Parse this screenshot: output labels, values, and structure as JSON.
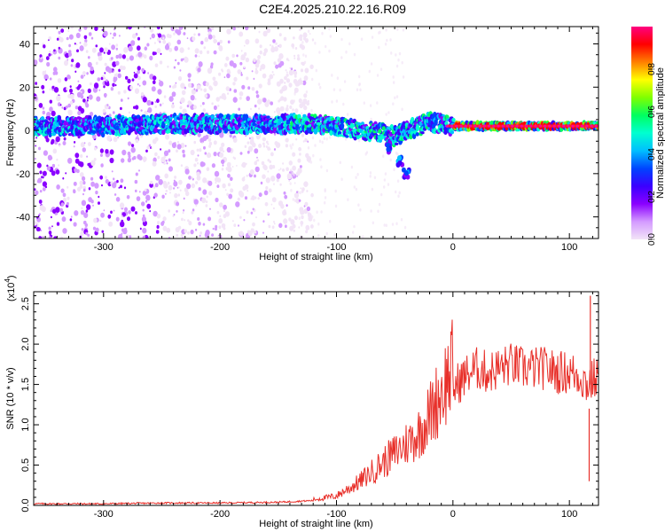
{
  "title": "C2E4.2025.210.22.16.R09",
  "chart_data": [
    {
      "type": "heatmap",
      "xlabel": "Height of straight line (km)",
      "ylabel": "Frequency (Hz)",
      "xlim": [
        -360,
        125
      ],
      "ylim": [
        -50,
        48
      ],
      "xticks": [
        -300,
        -200,
        -100,
        0,
        100
      ],
      "yticks": [
        -40,
        -20,
        0,
        20,
        40
      ],
      "xtick_labels": [
        "-300",
        "-200",
        "-100",
        "0",
        "100"
      ],
      "ytick_labels": [
        "-40",
        "-20",
        "0",
        "20",
        "40"
      ],
      "colorbar": {
        "label": "Normalized spectral amplitude",
        "range": [
          0,
          1
        ],
        "ticks": [
          0.0,
          0.2,
          0.4,
          0.6,
          0.8
        ],
        "tick_labels": [
          "0.0",
          "0.2",
          "0.4",
          "0.6",
          "0.8"
        ],
        "colors": [
          "#f2e4f7",
          "#d49bff",
          "#8a00ff",
          "#3b00ff",
          "#0044ff",
          "#00bfff",
          "#00ffd0",
          "#00ff60",
          "#80ff00",
          "#ffff00",
          "#ff8000",
          "#ff0000",
          "#ff0080"
        ]
      },
      "ridge": {
        "description_points": [
          [
            -355,
            2
          ],
          [
            -300,
            2
          ],
          [
            -250,
            3
          ],
          [
            -200,
            3
          ],
          [
            -150,
            3
          ],
          [
            -120,
            3
          ],
          [
            -100,
            2
          ],
          [
            -80,
            0
          ],
          [
            -60,
            -1
          ],
          [
            -50,
            -3
          ],
          [
            -40,
            0
          ],
          [
            -30,
            2
          ],
          [
            -20,
            4
          ],
          [
            -10,
            3
          ],
          [
            0,
            2
          ],
          [
            50,
            2
          ],
          [
            125,
            2
          ]
        ],
        "branch_points": [
          [
            -55,
            -8
          ],
          [
            -45,
            -14
          ],
          [
            -40,
            -20
          ]
        ],
        "noise_region_xlim": [
          -360,
          -140
        ]
      }
    },
    {
      "type": "line",
      "xlabel": "Height of straight line (km)",
      "ylabel": "SNR (10 * v/v)",
      "y_multiplier": "(x10",
      "y_multiplier_exp": "4",
      "y_multiplier_close": ")",
      "xlim": [
        -360,
        125
      ],
      "ylim": [
        0,
        2.65
      ],
      "xticks": [
        -300,
        -200,
        -100,
        0,
        100
      ],
      "yticks": [
        0.0,
        0.5,
        1.0,
        1.5,
        2.0,
        2.5
      ],
      "xtick_labels": [
        "-300",
        "-200",
        "-100",
        "0",
        "100"
      ],
      "ytick_labels": [
        "0.0",
        "0.5",
        "1.0",
        "1.5",
        "2.0",
        "2.5"
      ],
      "series": [
        {
          "color": "#e8302a",
          "x": [
            -360,
            -300,
            -250,
            -200,
            -150,
            -120,
            -100,
            -80,
            -60,
            -45,
            -30,
            -20,
            -10,
            0,
            10,
            20,
            30,
            40,
            50,
            60,
            70,
            80,
            90,
            100,
            110,
            115,
            120,
            125
          ],
          "y": [
            0.02,
            0.02,
            0.03,
            0.03,
            0.04,
            0.06,
            0.1,
            0.25,
            0.45,
            0.6,
            0.75,
            0.95,
            1.2,
            1.45,
            1.6,
            1.7,
            1.65,
            1.7,
            1.75,
            1.7,
            1.7,
            1.7,
            1.65,
            1.65,
            1.6,
            1.5,
            1.55,
            1.6
          ]
        }
      ],
      "annotations": {
        "spike_max": [
          118,
          2.6
        ],
        "spike_min": [
          117,
          0.3
        ]
      }
    }
  ]
}
